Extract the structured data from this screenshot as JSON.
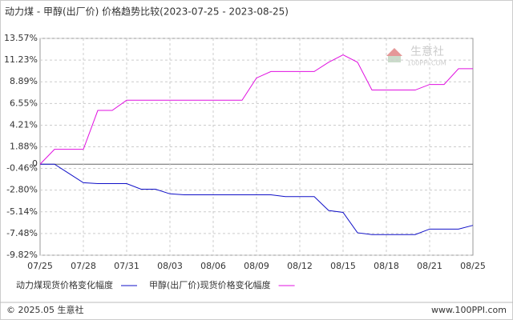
{
  "chart_data": {
    "type": "line",
    "title": "动力煤 - 甲醇(出厂价) 价格趋势比较(2023-07-25 - 2023-08-25)",
    "watermark": "生意社",
    "watermark_sub": "100PPI.COM",
    "footer_left": "© 2025.05 生意社",
    "footer_right": "www.100PPI.com",
    "categories": [
      "07/25",
      null,
      null,
      "07/28",
      null,
      null,
      "07/31",
      null,
      null,
      "08/03",
      null,
      null,
      "08/06",
      null,
      null,
      "08/09",
      null,
      null,
      "08/12",
      null,
      null,
      "08/15",
      null,
      null,
      "08/18",
      null,
      null,
      "08/21",
      null,
      null,
      "08/25"
    ],
    "series": [
      {
        "name": "动力煤现货价格变化幅度",
        "color": "#1010c8",
        "values": [
          0,
          0,
          -1.0,
          -2.0,
          -2.1,
          -2.1,
          -2.1,
          -2.7,
          -2.7,
          -3.2,
          -3.3,
          -3.3,
          -3.3,
          -3.3,
          -3.3,
          -3.3,
          -3.3,
          -3.5,
          -3.5,
          -3.5,
          -5.0,
          -5.2,
          -7.4,
          -7.6,
          -7.6,
          -7.6,
          -7.6,
          -7.0,
          -7.0,
          -7.0,
          -6.6
        ]
      },
      {
        "name": "甲醇(出厂价)现货价格变化幅度",
        "color": "#e010e0",
        "values": [
          0,
          1.6,
          1.6,
          1.6,
          5.8,
          5.8,
          6.9,
          6.9,
          6.9,
          6.9,
          6.9,
          6.9,
          6.9,
          6.9,
          6.9,
          9.3,
          10.0,
          10.0,
          10.0,
          10.0,
          11.0,
          11.8,
          11.0,
          8.0,
          8.0,
          8.0,
          8.0,
          8.6,
          8.6,
          10.3,
          10.3
        ]
      }
    ],
    "ylim": [
      -9.82,
      13.57
    ],
    "yticks": [
      {
        "value": 13.57,
        "label": "13.57%"
      },
      {
        "value": 11.23,
        "label": "11.23%"
      },
      {
        "value": 8.89,
        "label": "8.89%"
      },
      {
        "value": 6.55,
        "label": "6.55%"
      },
      {
        "value": 4.21,
        "label": "4.21%"
      },
      {
        "value": 1.88,
        "label": "1.88%"
      },
      0,
      {
        "value": -0.46,
        "label": "-0.46%"
      },
      {
        "value": -2.8,
        "label": "-2.80%"
      },
      {
        "value": -5.14,
        "label": "-5.14%"
      },
      {
        "value": -7.48,
        "label": "-7.48%"
      },
      {
        "value": -9.82,
        "label": "-9.82%"
      }
    ],
    "grid": true
  }
}
